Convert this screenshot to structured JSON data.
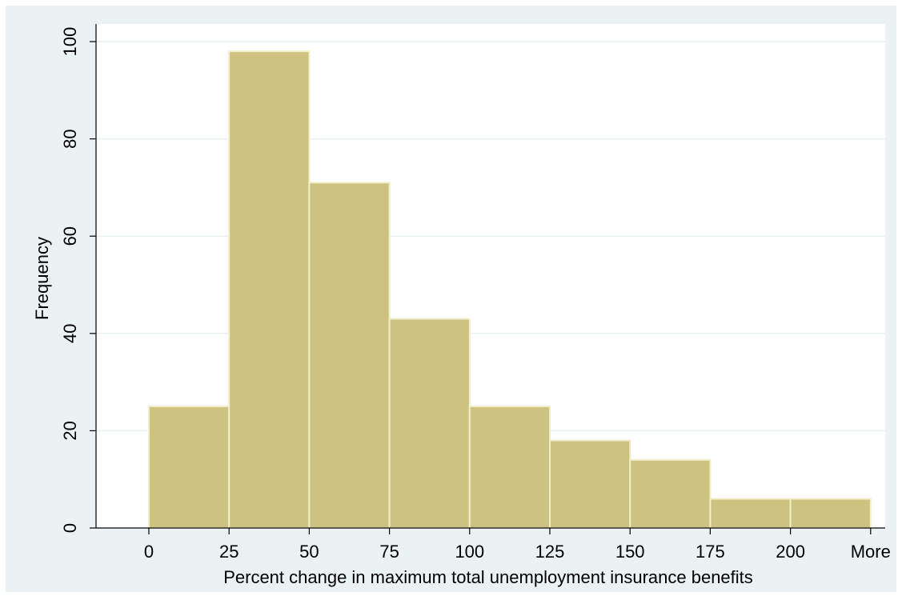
{
  "chart_data": {
    "type": "bar",
    "title": "",
    "xlabel": "Percent change in maximum total unemployment insurance benefits",
    "ylabel": "Frequency",
    "categories": [
      "0-25",
      "25-50",
      "50-75",
      "75-100",
      "100-125",
      "125-150",
      "150-175",
      "175-200",
      "200-More"
    ],
    "x_tick_labels": [
      "0",
      "25",
      "50",
      "75",
      "100",
      "125",
      "150",
      "175",
      "200",
      "More"
    ],
    "values": [
      25,
      98,
      71,
      43,
      25,
      18,
      14,
      6,
      6
    ],
    "y_ticks": [
      "0",
      "20",
      "40",
      "60",
      "80",
      "100"
    ],
    "ylim": [
      0,
      100
    ],
    "grid": true,
    "legend": "none",
    "colors": {
      "plot_region": "#eaf2f3",
      "inner_plot": "#ffffff",
      "bar_fill": "#cdc280",
      "bar_edge": "#f1edc9",
      "gridline": "#eaf2f3"
    }
  }
}
